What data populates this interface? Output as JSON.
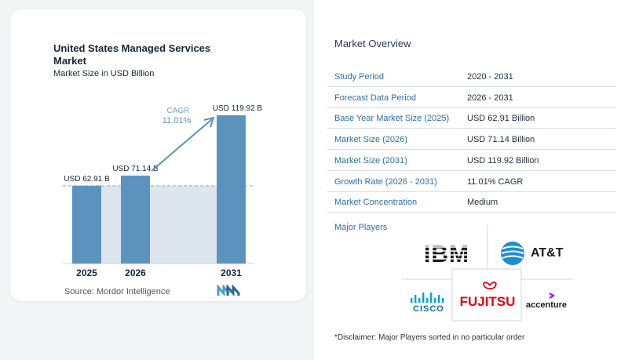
{
  "left_panel": {
    "title_line1": "United States Managed Services",
    "title_line2": "Market",
    "subtitle": "Market Size in USD Billion",
    "source": "Source: Mordor Intelligence"
  },
  "chart_data": {
    "type": "bar",
    "categories": [
      "2025",
      "2026",
      "2031"
    ],
    "values": [
      62.91,
      71.14,
      119.92
    ],
    "value_labels": [
      "USD 62.91 B",
      "USD 71.14 B",
      "USD 119.92 B"
    ],
    "cagr_label": "CAGR",
    "cagr_value": "11.01%",
    "ylim": [
      0,
      130
    ]
  },
  "overview": {
    "title": "Market Overview",
    "rows": [
      {
        "label": "Study Period",
        "value": "2020 - 2031"
      },
      {
        "label": "Forecast Data Period",
        "value": "2026 - 2031"
      },
      {
        "label": "Base Year Market Size (2025)",
        "value": "USD 62.91 Billion"
      },
      {
        "label": "Market Size (2026)",
        "value": "USD 71.14 Billion"
      },
      {
        "label": "Market Size (2031)",
        "value": "USD 119.92 Billion"
      },
      {
        "label": "Growth Rate (2026 - 2031)",
        "value": "11.01% CAGR"
      },
      {
        "label": "Market Concentration",
        "value": "Medium"
      }
    ]
  },
  "players": {
    "title": "Major Players",
    "logos": [
      "IBM",
      "AT&T",
      "CISCO",
      "FUJITSU",
      "accenture"
    ],
    "disclaimer": "*Disclaimer: Major Players sorted in no particular order"
  },
  "colors": {
    "bar": "#5b93bf",
    "shade": "#dde6ef",
    "arrow": "#5b93bf",
    "key_text": "#2f6fa3"
  }
}
